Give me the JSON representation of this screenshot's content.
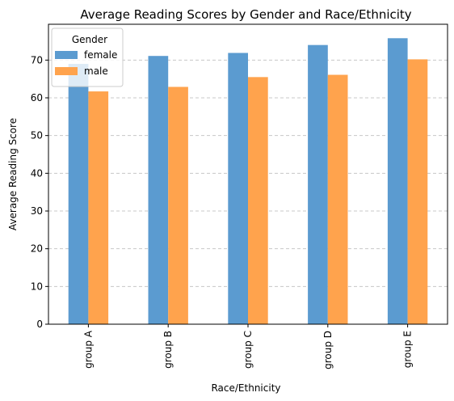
{
  "chart_data": {
    "type": "bar",
    "title": "Average Reading Scores by Gender and Race/Ethnicity",
    "xlabel": "Race/Ethnicity",
    "ylabel": "Average Reading Score",
    "categories": [
      "group A",
      "group B",
      "group C",
      "group D",
      "group E"
    ],
    "ylim": [
      0,
      79.5
    ],
    "yticks": [
      0,
      10,
      20,
      30,
      40,
      50,
      60,
      70
    ],
    "grid": "y-dashed",
    "legend": {
      "title": "Gender",
      "placement": "top-left"
    },
    "series": [
      {
        "name": "female",
        "color": "#5b9bd0",
        "values": [
          69.0,
          71.1,
          71.9,
          74.0,
          75.8
        ]
      },
      {
        "name": "male",
        "color": "#ffa34d",
        "values": [
          61.7,
          62.9,
          65.5,
          66.1,
          70.2
        ]
      }
    ]
  }
}
